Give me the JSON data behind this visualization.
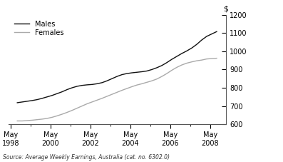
{
  "source_text": "Source: Average Weekly Earnings, Australia (cat. no. 6302.0)",
  "dollar_label": "$",
  "ylim": [
    600,
    1200
  ],
  "yticks": [
    600,
    700,
    800,
    900,
    1000,
    1100,
    1200
  ],
  "xlim": [
    1997.9,
    2008.8
  ],
  "xtick_years": [
    1998,
    2000,
    2002,
    2004,
    2006,
    2008
  ],
  "legend_labels": [
    "Males",
    "Females"
  ],
  "males_color": "#111111",
  "females_color": "#aaaaaa",
  "males_data": {
    "years": [
      1998.33,
      1998.58,
      1998.83,
      1999.08,
      1999.33,
      1999.58,
      1999.83,
      2000.08,
      2000.33,
      2000.58,
      2000.83,
      2001.08,
      2001.33,
      2001.58,
      2001.83,
      2002.08,
      2002.33,
      2002.58,
      2002.83,
      2003.08,
      2003.33,
      2003.58,
      2003.83,
      2004.08,
      2004.33,
      2004.58,
      2004.83,
      2005.08,
      2005.33,
      2005.58,
      2005.83,
      2006.08,
      2006.33,
      2006.58,
      2006.83,
      2007.08,
      2007.33,
      2007.58,
      2007.83,
      2008.33
    ],
    "values": [
      718,
      722,
      726,
      730,
      735,
      742,
      750,
      758,
      768,
      778,
      790,
      800,
      808,
      813,
      816,
      818,
      822,
      828,
      838,
      850,
      862,
      872,
      878,
      882,
      885,
      888,
      892,
      900,
      910,
      922,
      938,
      956,
      972,
      988,
      1002,
      1018,
      1038,
      1062,
      1082,
      1108
    ]
  },
  "females_data": {
    "years": [
      1998.33,
      1998.58,
      1998.83,
      1999.08,
      1999.33,
      1999.58,
      1999.83,
      2000.08,
      2000.33,
      2000.58,
      2000.83,
      2001.08,
      2001.33,
      2001.58,
      2001.83,
      2002.08,
      2002.33,
      2002.58,
      2002.83,
      2003.08,
      2003.33,
      2003.58,
      2003.83,
      2004.08,
      2004.33,
      2004.58,
      2004.83,
      2005.08,
      2005.33,
      2005.58,
      2005.83,
      2006.08,
      2006.33,
      2006.58,
      2006.83,
      2007.08,
      2007.33,
      2007.58,
      2007.83,
      2008.33
    ],
    "values": [
      618,
      618,
      620,
      622,
      625,
      628,
      632,
      638,
      646,
      655,
      665,
      676,
      688,
      700,
      712,
      722,
      732,
      742,
      753,
      764,
      775,
      786,
      796,
      806,
      815,
      822,
      830,
      838,
      848,
      862,
      878,
      896,
      912,
      925,
      935,
      942,
      948,
      952,
      958,
      962
    ]
  }
}
